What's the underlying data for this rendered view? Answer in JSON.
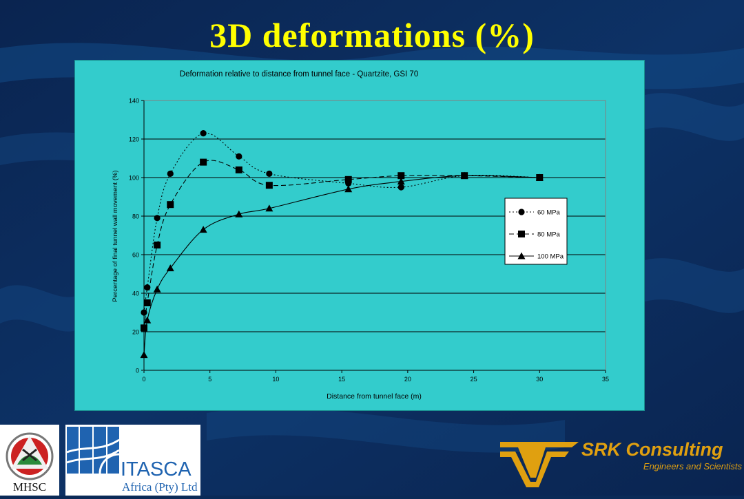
{
  "slide": {
    "title": "3D deformations (%)"
  },
  "chart_data": {
    "type": "line",
    "title": "Deformation relative to distance from tunnel face - Quartzite, GSI 70",
    "xlabel": "Distance from tunnel face (m)",
    "ylabel": "Percentage of final tunnel wall movement (%)",
    "xlim": [
      0,
      35
    ],
    "ylim": [
      0,
      140
    ],
    "xticks": [
      0,
      5,
      10,
      15,
      20,
      25,
      30,
      35
    ],
    "yticks": [
      0,
      20,
      40,
      60,
      80,
      100,
      120,
      140
    ],
    "grid": "horizontal",
    "legend_position": "right",
    "series": [
      {
        "name": "60 MPa",
        "marker": "circle",
        "dash": "dotted",
        "x": [
          0,
          0.25,
          1,
          2,
          4.5,
          7.2,
          9.5,
          15.5,
          19.5,
          24.3,
          30
        ],
        "y": [
          30,
          43,
          79,
          102,
          123,
          111,
          102,
          97,
          95,
          101,
          100
        ]
      },
      {
        "name": "80 MPa",
        "marker": "square",
        "dash": "dashed",
        "x": [
          0,
          0.25,
          1,
          2,
          4.5,
          7.2,
          9.5,
          15.5,
          19.5,
          24.3,
          30
        ],
        "y": [
          22,
          35,
          65,
          86,
          108,
          104,
          96,
          99,
          101,
          101,
          100
        ]
      },
      {
        "name": "100 MPa",
        "marker": "triangle",
        "dash": "solid",
        "x": [
          0,
          0.25,
          1,
          2,
          4.5,
          7.2,
          9.5,
          15.5,
          19.5,
          24.3,
          30
        ],
        "y": [
          8,
          26,
          42,
          53,
          73,
          81,
          84,
          94,
          98,
          101,
          100
        ]
      }
    ]
  },
  "logos": {
    "mhsc": {
      "text": "MHSC"
    },
    "itasca": {
      "name": "ITASCA",
      "sub": "Africa (Pty) Ltd"
    },
    "srk": {
      "name": "SRK Consulting",
      "tagline": "Engineers and Scientists"
    }
  },
  "colors": {
    "background": "#0b2a57",
    "title": "#ffff00",
    "plot_area": "#33cccc",
    "srk_gold": "#e0a010",
    "itasca_blue": "#1f63b0"
  }
}
